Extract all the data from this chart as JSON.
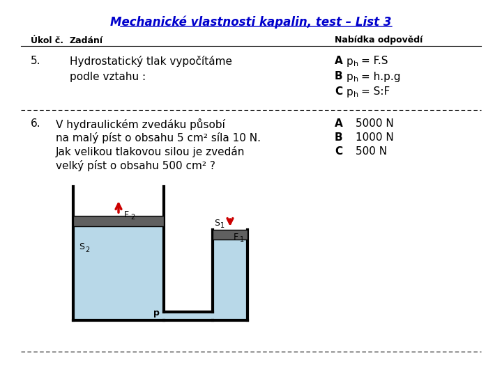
{
  "title": "Mechanické vlastnosti kapalin, test – List 3",
  "title_color": "#0000CC",
  "background_color": "#ffffff",
  "header_col1": "Úkol č.",
  "header_col2": "Zadání",
  "header_col3": "Nabídka odpovědí",
  "task5_num": "5.",
  "task5_line1": "Hydrostatický tlak vypočítáme",
  "task5_line2": "podle vztahu :",
  "task5_A_label": "A",
  "task5_A_p": "p",
  "task5_A_sub": "h",
  "task5_A_eq": "= F.S",
  "task5_B_label": "B",
  "task5_B_p": "p",
  "task5_B_sub": "h",
  "task5_B_eq": "= h.p.g",
  "task5_C_label": "C",
  "task5_C_p": "p",
  "task5_C_sub": "h",
  "task5_C_eq": "= S:F",
  "task6_num": "6.",
  "task6_line1": "V hydraulickém zvedáku působí",
  "task6_line2": "na malý píst o obsahu 5 cm² síla 10 N.",
  "task6_line3": "Jak velikou tlakovou silou je zvedán",
  "task6_line4": "velký píst o obsahu 500 cm² ?",
  "task6_A_label": "A",
  "task6_A_val": "5000 N",
  "task6_B_label": "B",
  "task6_B_val": "1000 N",
  "task6_C_label": "C",
  "task6_C_val": "500 N",
  "liquid_color": "#b8d8e8",
  "piston_color": "#606060",
  "arrow_color": "#cc0000",
  "wall_color": "#000000",
  "label_F2": "F",
  "label_F2_sub": "2",
  "label_F1": "F",
  "label_F1_sub": "1",
  "label_S2": "S",
  "label_S2_sub": "2",
  "label_S1": "S",
  "label_S1_sub": "1",
  "label_p": "p"
}
